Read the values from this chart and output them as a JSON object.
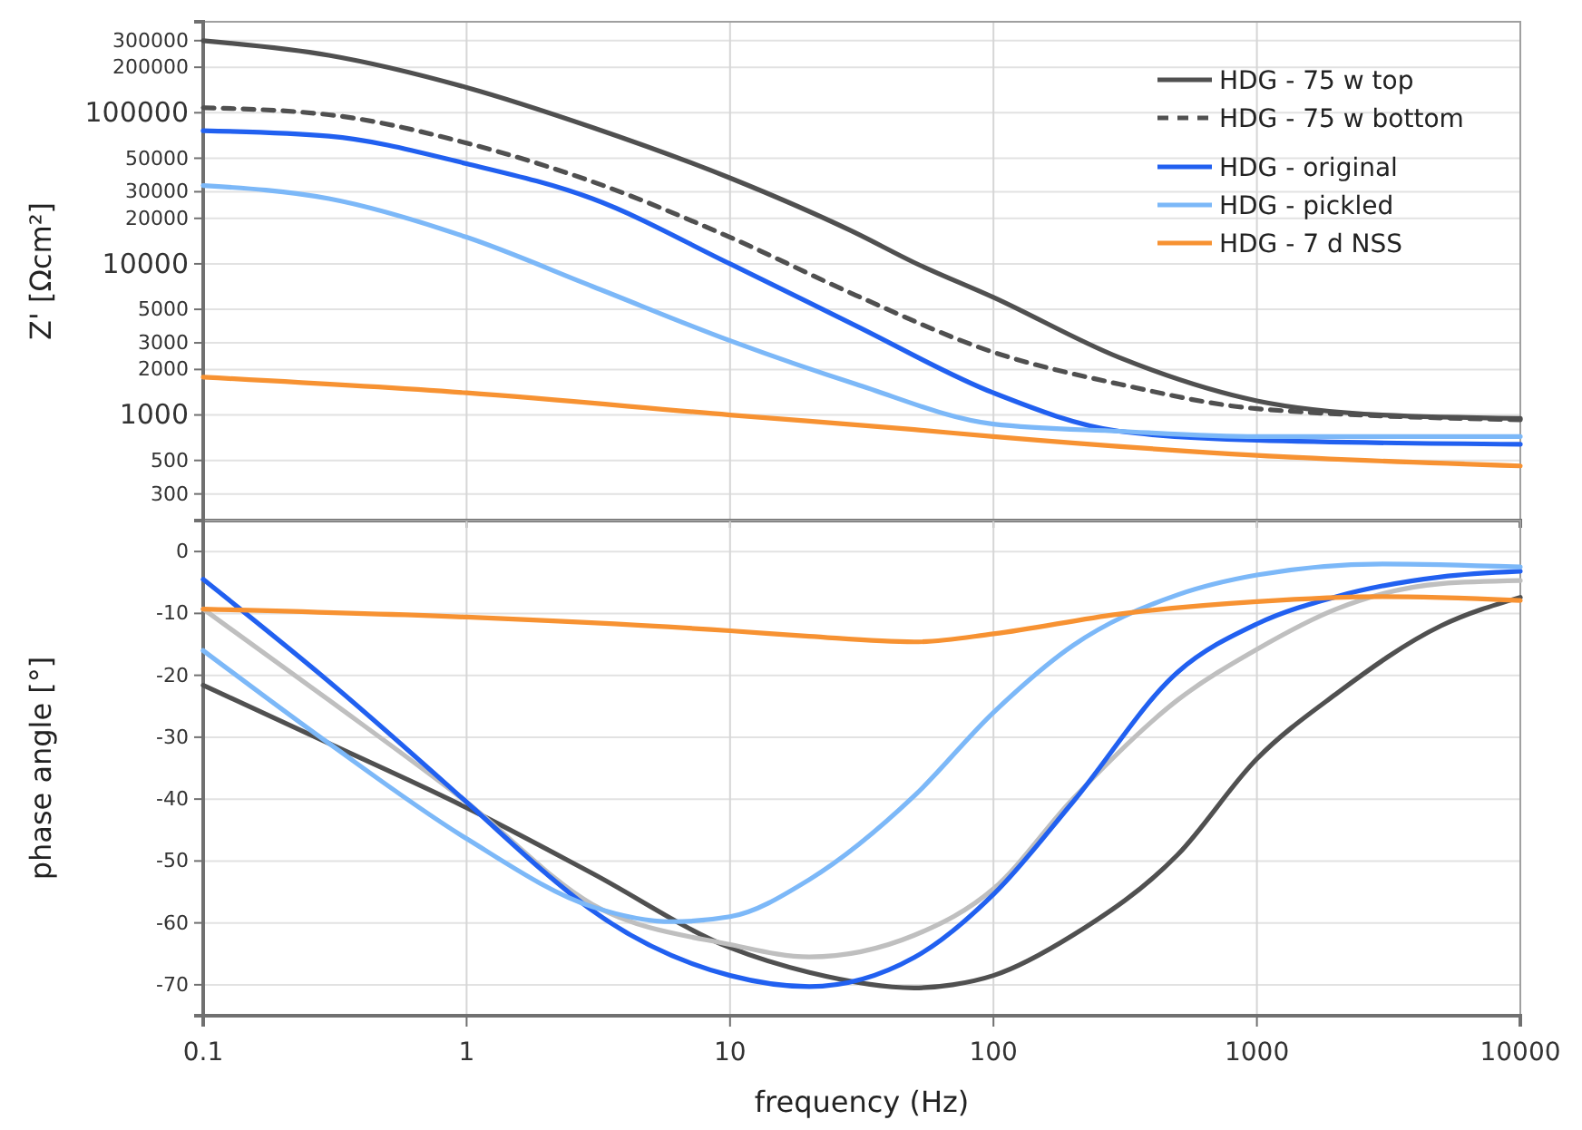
{
  "chart_data": [
    {
      "type": "line",
      "ylabel": "Z' [Ωcm²]",
      "log": "xy",
      "grid": true,
      "legend": "top right",
      "tick_labels": "y",
      "xlim": [
        0.1,
        10000
      ],
      "xticks": [
        0.1,
        1,
        10,
        100,
        1000,
        10000
      ],
      "ylim": [
        200,
        400000
      ],
      "yticks": [
        300,
        500,
        1000,
        2000,
        3000,
        5000,
        10000,
        20000,
        30000,
        50000,
        100000,
        200000,
        300000
      ],
      "series": [
        {
          "name": "HDG - 75 w top",
          "color": "#505050",
          "line_style": "solid",
          "x": [
            0.1,
            0.3,
            1,
            3,
            10,
            30,
            50,
            100,
            300,
            1000,
            3000,
            10000
          ],
          "values": [
            300000,
            240000,
            147000,
            80000,
            37000,
            16000,
            10200,
            6000,
            2400,
            1240,
            1000,
            950
          ]
        },
        {
          "name": "HDG - 75 w bottom",
          "color": "#505050",
          "line_style": "dashed",
          "x": [
            0.1,
            0.3,
            1,
            3,
            10,
            30,
            100,
            300,
            1000,
            10000
          ],
          "values": [
            108000,
            97000,
            63000,
            35000,
            15000,
            6200,
            2600,
            1600,
            1100,
            930
          ]
        },
        {
          "name": "HDG - original",
          "color": "#2160f0",
          "line_style": "solid",
          "x": [
            0.1,
            0.3,
            1,
            3,
            10,
            30,
            100,
            300,
            1000,
            10000
          ],
          "values": [
            76000,
            70000,
            46000,
            27000,
            10000,
            3900,
            1400,
            780,
            680,
            640
          ]
        },
        {
          "name": "HDG - pickled",
          "color": "#7cb8f8",
          "line_style": "solid",
          "x": [
            0.1,
            0.3,
            1,
            3,
            10,
            30,
            100,
            300,
            1000,
            10000
          ],
          "values": [
            33000,
            27000,
            15000,
            7100,
            3100,
            1600,
            870,
            780,
            720,
            720
          ]
        },
        {
          "name": "HDG - 7 d NSS",
          "color": "#f79232",
          "line_style": "solid",
          "x": [
            0.1,
            1,
            10,
            50,
            100,
            1000,
            10000
          ],
          "values": [
            1780,
            1400,
            1000,
            800,
            720,
            540,
            460
          ]
        }
      ]
    },
    {
      "type": "line",
      "ylabel": "phase angle [°]",
      "xlabel": "frequency (Hz)",
      "log": "x",
      "grid": true,
      "xlim": [
        0.1,
        10000
      ],
      "xticks": [
        0.1,
        1,
        10,
        100,
        1000,
        10000
      ],
      "ylim": [
        -75,
        5
      ],
      "yticks": [
        0,
        -10,
        -20,
        -30,
        -40,
        -50,
        -60,
        -70
      ],
      "series": [
        {
          "color": "#505050",
          "x": [
            0.1,
            0.3,
            1,
            3,
            10,
            20,
            50,
            70,
            100,
            200,
            500,
            1000,
            2000,
            5000,
            10000
          ],
          "values": [
            -21.6,
            -31,
            -41.4,
            -52,
            -64,
            -68,
            -70.5,
            -70,
            -68.5,
            -62,
            -49,
            -33.5,
            -23,
            -12,
            -7.4
          ]
        },
        {
          "color": "#bfbfbf",
          "x": [
            0.1,
            0.3,
            1,
            3,
            10,
            20,
            50,
            100,
            200,
            500,
            1000,
            2000,
            5000,
            10000
          ],
          "values": [
            -9.3,
            -24,
            -40.5,
            -57,
            -63.5,
            -65.5,
            -62,
            -54.5,
            -40,
            -24,
            -15.8,
            -9.3,
            -5.2,
            -4.7
          ]
        },
        {
          "color": "#2160f0",
          "x": [
            0.1,
            0.3,
            1,
            2,
            3,
            10,
            20,
            50,
            100,
            200,
            500,
            1000,
            2000,
            5000,
            10000
          ],
          "values": [
            -4.5,
            -21,
            -40.5,
            -52,
            -58,
            -68.5,
            -70.3,
            -65.6,
            -55.4,
            -40.5,
            -19.5,
            -11.7,
            -7.3,
            -4.1,
            -3.2
          ]
        },
        {
          "color": "#7cb8f8",
          "x": [
            0.1,
            0.3,
            1,
            3,
            6,
            10,
            20,
            50,
            100,
            200,
            500,
            1000,
            3000,
            10000
          ],
          "values": [
            -16,
            -31,
            -46.4,
            -57.4,
            -59.8,
            -59,
            -53,
            -39.5,
            -26,
            -15.2,
            -7,
            -3.8,
            -2,
            -2.5
          ]
        },
        {
          "color": "#f79232",
          "x": [
            0.1,
            1,
            10,
            20,
            50,
            100,
            300,
            1000,
            3000,
            10000
          ],
          "values": [
            -9.3,
            -10.6,
            -12.8,
            -13.7,
            -14.6,
            -13.3,
            -10.1,
            -8.1,
            -7.3,
            -7.9
          ]
        }
      ]
    }
  ]
}
